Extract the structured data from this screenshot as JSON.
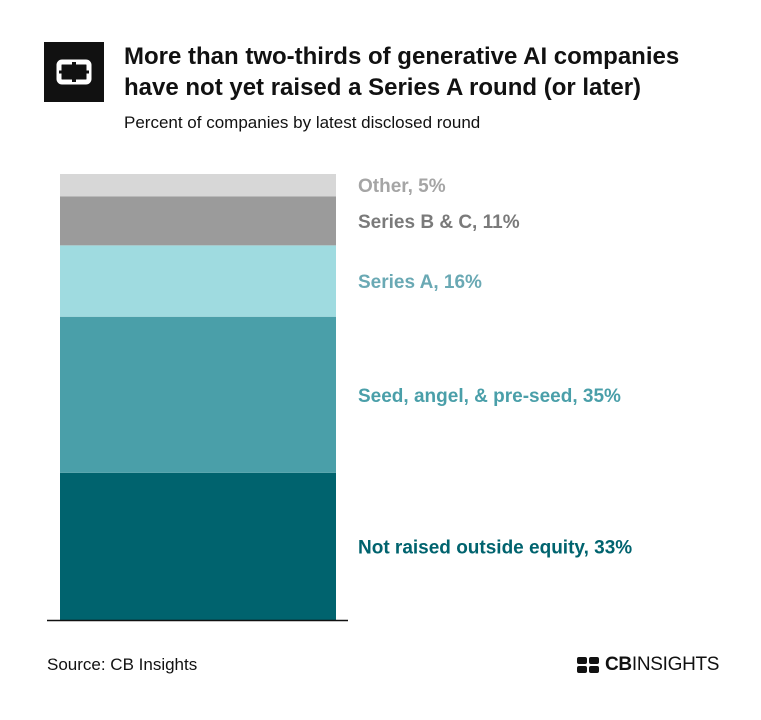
{
  "header": {
    "title_line1": "More than two-thirds of generative AI companies",
    "title_line2": "have not yet raised a Series A round (or later)",
    "subtitle": "Percent of companies by latest disclosed round"
  },
  "footer": {
    "source": "Source: CB Insights",
    "brand_bold": "CB",
    "brand_rest": "INSIGHTS"
  },
  "chart_data": {
    "type": "bar",
    "stacked": true,
    "categories": [
      "Generative AI companies"
    ],
    "series": [
      {
        "name": "Not raised outside equity",
        "label": "Not raised outside equity, 33%",
        "value": 33,
        "color": "#00636e"
      },
      {
        "name": "Seed, angel, & pre-seed",
        "label": "Seed, angel, & pre-seed, 35%",
        "value": 35,
        "color": "#4a9fa9"
      },
      {
        "name": "Series A",
        "label": "Series A, 16%",
        "value": 16,
        "color": "#9fdbe0"
      },
      {
        "name": "Series B & C",
        "label": "Series B & C, 11%",
        "value": 11,
        "color": "#9b9b9b"
      },
      {
        "name": "Other",
        "label": "Other, 5%",
        "value": 5,
        "color": "#d7d7d7"
      }
    ],
    "label_colors": [
      "#00636e",
      "#4a9fa9",
      "#6aa9b4",
      "#7a7a7a",
      "#a5a5a5"
    ],
    "ylim": [
      0,
      100
    ],
    "axis_color": "#111111"
  }
}
